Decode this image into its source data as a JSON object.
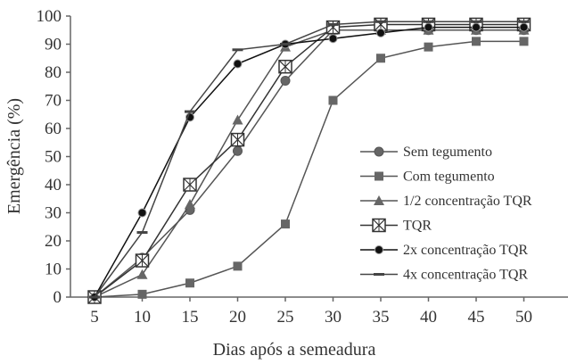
{
  "chart_data": {
    "type": "line",
    "xlabel": "Dias após a semeadura",
    "ylabel": "Emergência (%)",
    "x": [
      5,
      10,
      15,
      20,
      25,
      30,
      35,
      40,
      45,
      50
    ],
    "xlim": [
      5,
      50
    ],
    "ylim": [
      0,
      100
    ],
    "yticks": [
      0,
      10,
      20,
      30,
      40,
      50,
      60,
      70,
      80,
      90,
      100
    ],
    "legend_position": "lower-right",
    "series": [
      {
        "name": "Sem tegumento",
        "marker": "circle",
        "color": "#555555",
        "values": [
          0,
          14,
          31,
          52,
          77,
          95,
          95,
          95,
          95,
          95
        ]
      },
      {
        "name": "Com tegumento",
        "marker": "square",
        "color": "#555555",
        "values": [
          0,
          1,
          5,
          11,
          26,
          70,
          85,
          89,
          91,
          91
        ]
      },
      {
        "name": "1/2 concentração TQR",
        "marker": "triangle",
        "color": "#555555",
        "values": [
          0,
          8,
          33,
          63,
          89,
          95,
          95,
          95,
          95,
          95
        ]
      },
      {
        "name": "TQR",
        "marker": "boxed-x",
        "color": "#333333",
        "values": [
          0,
          13,
          40,
          56,
          82,
          96,
          97,
          97,
          97,
          97
        ]
      },
      {
        "name": "2x concentração TQR",
        "marker": "dot",
        "color": "#111111",
        "values": [
          0,
          30,
          64,
          83,
          90,
          92,
          94,
          96,
          96,
          96
        ]
      },
      {
        "name": "4x concentração TQR",
        "marker": "dash",
        "color": "#444444",
        "values": [
          0,
          23,
          66,
          88,
          90,
          97,
          98,
          98,
          98,
          98
        ]
      }
    ]
  }
}
